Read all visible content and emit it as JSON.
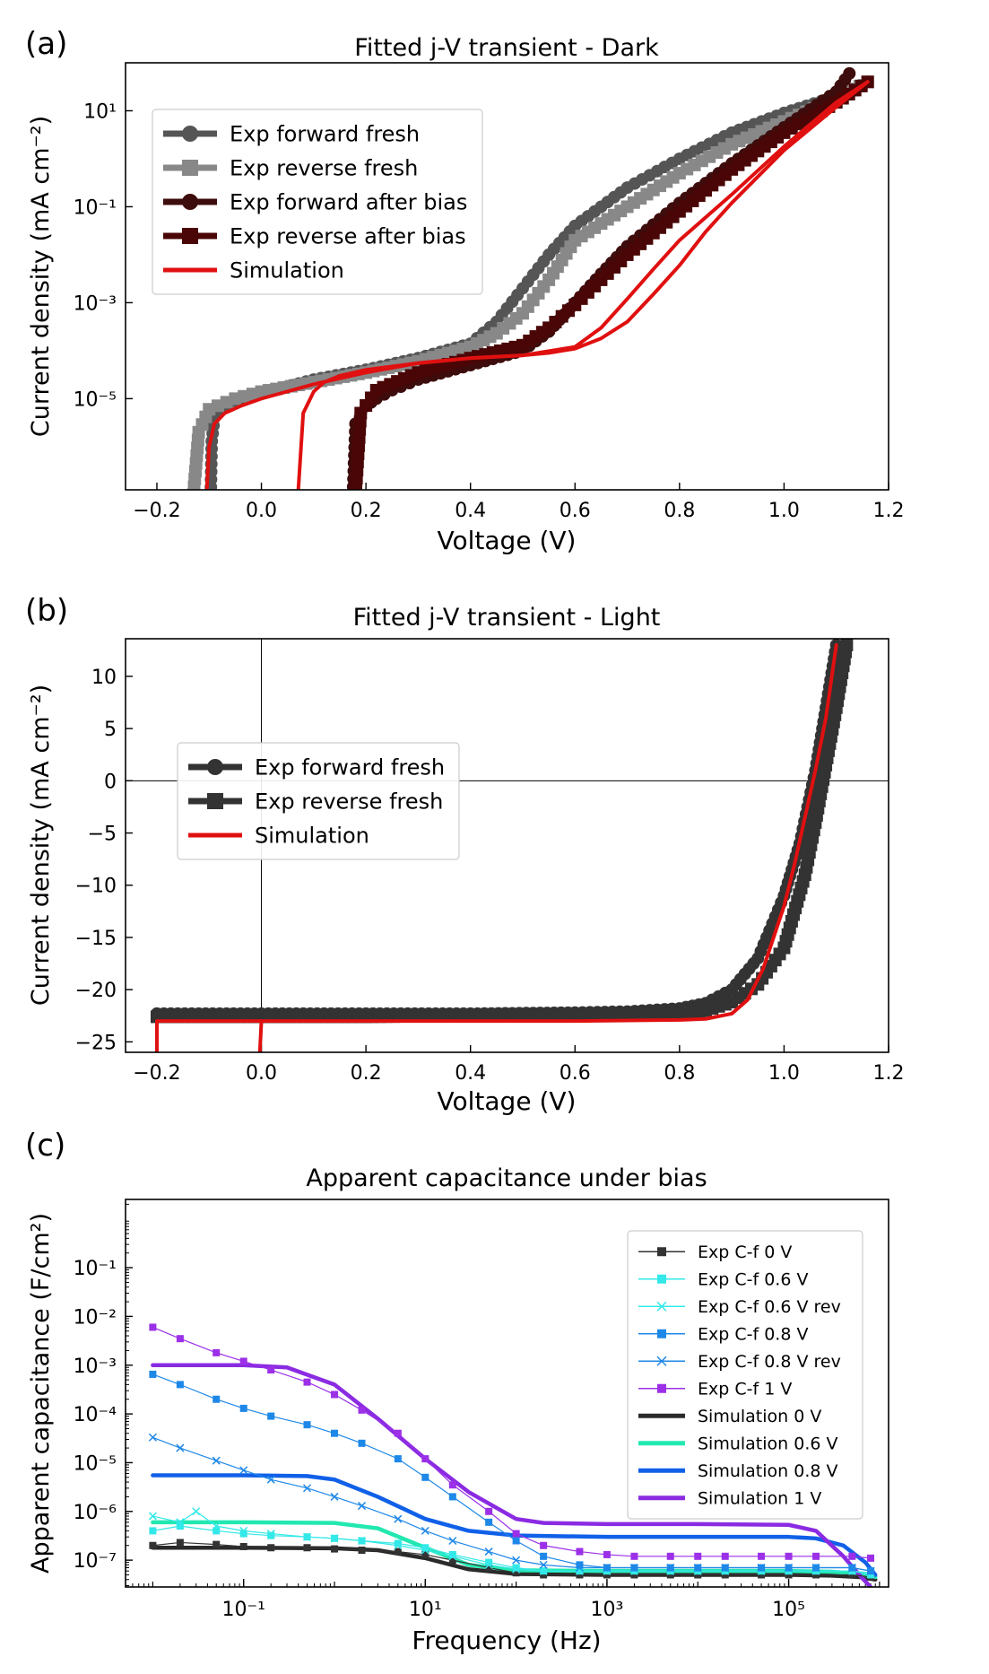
{
  "chart_data": [
    {
      "panel_label": "(a)",
      "type": "line",
      "title": "Fitted j-V transient - Dark",
      "xlabel": "Voltage (V)",
      "ylabel": "Current density (mA cm⁻²)",
      "xlim": [
        -0.26,
        1.2
      ],
      "ylim_log10": [
        -6.9,
        2.0
      ],
      "y_scale": "log",
      "x_ticks": [
        -0.2,
        0.0,
        0.2,
        0.4,
        0.6,
        0.8,
        1.0,
        1.2
      ],
      "x_tick_labels": [
        "−0.2",
        "0.0",
        "0.2",
        "0.4",
        "0.6",
        "0.8",
        "1.0",
        "1.2"
      ],
      "y_tick_exponents": [
        1,
        -1,
        -3,
        -5
      ],
      "legend_position": "upper-left",
      "series": [
        {
          "name": "Exp forward fresh",
          "color": "#555555",
          "marker": "circle",
          "x": [
            -0.097,
            -0.095,
            -0.09,
            -0.08,
            -0.05,
            0.0,
            0.1,
            0.2,
            0.3,
            0.4,
            0.45,
            0.5,
            0.55,
            0.6,
            0.7,
            0.8,
            0.9,
            1.0,
            1.1,
            1.16
          ],
          "y": [
            1e-07,
            1.3e-06,
            4e-06,
            6e-06,
            9e-06,
            1.3e-05,
            2.5e-05,
            4e-05,
            7e-05,
            0.00014,
            0.0004,
            0.002,
            0.01,
            0.04,
            0.25,
            1.0,
            3.5,
            9.0,
            20.0,
            40.0
          ]
        },
        {
          "name": "Exp reverse fresh",
          "color": "#888888",
          "marker": "square",
          "x": [
            1.16,
            1.1,
            1.0,
            0.9,
            0.8,
            0.7,
            0.6,
            0.55,
            0.5,
            0.45,
            0.4,
            0.3,
            0.2,
            0.1,
            0.0,
            -0.05,
            -0.1,
            -0.12,
            -0.13
          ],
          "y": [
            40.0,
            18.0,
            6.0,
            2.0,
            0.5,
            0.1,
            0.02,
            0.003,
            0.0006,
            0.00023,
            0.00012,
            6e-05,
            3.5e-05,
            2.2e-05,
            1.4e-05,
            1e-05,
            6e-06,
            2e-06,
            1e-07
          ]
        },
        {
          "name": "Exp forward after bias",
          "color": "#3d0c0c",
          "marker": "circle",
          "x": [
            0.175,
            0.18,
            0.19,
            0.2,
            0.22,
            0.25,
            0.3,
            0.4,
            0.5,
            0.55,
            0.6,
            0.65,
            0.7,
            0.8,
            0.9,
            1.0,
            1.1,
            1.125
          ],
          "y": [
            1e-07,
            3e-06,
            5e-06,
            7e-06,
            1e-05,
            1.5e-05,
            2.5e-05,
            5e-05,
            0.0001,
            0.00025,
            0.001,
            0.004,
            0.015,
            0.12,
            0.8,
            4.5,
            25.0,
            60.0
          ]
        },
        {
          "name": "Exp reverse after bias",
          "color": "#4a0606",
          "marker": "square",
          "x": [
            1.16,
            1.1,
            1.0,
            0.9,
            0.8,
            0.7,
            0.65,
            0.6,
            0.55,
            0.5,
            0.4,
            0.3,
            0.22,
            0.19,
            0.18
          ],
          "y": [
            40.0,
            15.0,
            3.5,
            0.6,
            0.08,
            0.01,
            0.003,
            0.0009,
            0.0003,
            0.00013,
            7e-05,
            3.5e-05,
            1.5e-05,
            5e-06,
            1e-07
          ]
        },
        {
          "name": "Simulation",
          "color": "#e01010",
          "marker": "none",
          "x": [
            -0.105,
            -0.1,
            -0.09,
            -0.07,
            -0.04,
            0.0,
            0.1,
            0.2,
            0.3,
            0.4,
            0.5,
            0.55,
            0.6,
            0.65,
            0.7,
            0.75,
            0.8,
            0.85,
            0.9,
            1.0,
            1.1,
            1.16
          ],
          "y": [
            1e-07,
            1e-06,
            3e-06,
            5e-06,
            7e-06,
            1e-05,
            2e-05,
            3.5e-05,
            5.5e-05,
            7e-05,
            8e-05,
            9e-05,
            0.00011,
            0.00018,
            0.0004,
            0.0015,
            0.006,
            0.03,
            0.12,
            1.5,
            12.0,
            40.0
          ]
        },
        {
          "name": "Simulation",
          "color": "#e01010",
          "marker": "none",
          "legend": false,
          "x": [
            1.16,
            1.1,
            1.0,
            0.9,
            0.8,
            0.75,
            0.7,
            0.65,
            0.6,
            0.5,
            0.4,
            0.3,
            0.2,
            0.15,
            0.12,
            0.1,
            0.08,
            0.07
          ],
          "y": [
            40.0,
            15.0,
            1.8,
            0.18,
            0.02,
            0.005,
            0.0012,
            0.0003,
            0.00012,
            8e-05,
            7e-05,
            5.5e-05,
            4e-05,
            3e-05,
            2.2e-05,
            1.4e-05,
            5e-06,
            1e-07
          ]
        }
      ]
    },
    {
      "panel_label": "(b)",
      "type": "line",
      "title": "Fitted j-V transient - Light",
      "xlabel": "Voltage (V)",
      "ylabel": "Current density (mA cm⁻²)",
      "xlim": [
        -0.26,
        1.2
      ],
      "ylim": [
        -26,
        13.6
      ],
      "x_ticks": [
        -0.2,
        0.0,
        0.2,
        0.4,
        0.6,
        0.8,
        1.0,
        1.2
      ],
      "x_tick_labels": [
        "−0.2",
        "0.0",
        "0.2",
        "0.4",
        "0.6",
        "0.8",
        "1.0",
        "1.2"
      ],
      "y_ticks": [
        10,
        5,
        0,
        -5,
        -10,
        -15,
        -20,
        -25
      ],
      "y_tick_labels": [
        "10",
        "5",
        "0",
        "−5",
        "−10",
        "−15",
        "−20",
        "−25"
      ],
      "legend_position": "center-left",
      "series": [
        {
          "name": "Exp forward fresh",
          "color": "#333333",
          "marker": "circle",
          "x": [
            -0.2,
            0.0,
            0.2,
            0.4,
            0.6,
            0.7,
            0.8,
            0.85,
            0.9,
            0.95,
            1.0,
            1.03,
            1.06,
            1.08,
            1.1
          ],
          "y": [
            -22.3,
            -22.3,
            -22.3,
            -22.3,
            -22.2,
            -22.1,
            -21.8,
            -21.3,
            -20.0,
            -17.0,
            -11.0,
            -6.0,
            1.0,
            7.0,
            13.0
          ]
        },
        {
          "name": "Exp reverse fresh",
          "color": "#333333",
          "marker": "square",
          "x": [
            1.12,
            1.1,
            1.08,
            1.06,
            1.04,
            1.0,
            0.95,
            0.9,
            0.85,
            0.8,
            0.7,
            0.6,
            0.4,
            0.2,
            0.0,
            -0.2
          ],
          "y": [
            13.0,
            7.0,
            1.5,
            -4.0,
            -9.0,
            -16.0,
            -19.5,
            -21.2,
            -22.0,
            -22.3,
            -22.4,
            -22.5,
            -22.5,
            -22.6,
            -22.6,
            -22.6
          ]
        },
        {
          "name": "Simulation",
          "color": "#e01010",
          "marker": "none",
          "x": [
            -0.2,
            -0.2,
            0.0,
            0.2,
            0.4,
            0.6,
            0.8,
            0.85,
            0.9,
            0.93,
            0.96,
            1.0,
            1.02,
            1.04,
            1.06,
            1.08,
            1.1
          ],
          "y": [
            -26.0,
            -23.0,
            -23.0,
            -23.0,
            -23.0,
            -23.0,
            -22.9,
            -22.8,
            -22.3,
            -21.0,
            -18.0,
            -12.0,
            -8.0,
            -3.5,
            1.0,
            6.0,
            13.0
          ]
        },
        {
          "name": "Simulation",
          "color": "#e01010",
          "marker": "none",
          "legend": false,
          "x": [
            -0.003,
            0.0
          ],
          "y": [
            -26.0,
            -23.0
          ]
        }
      ]
    },
    {
      "panel_label": "(c)",
      "type": "line",
      "title": "Apparent capacitance under bias",
      "xlabel": "Frequency (Hz)",
      "ylabel": "Apparent capacitance (F/cm²)",
      "x_scale": "log",
      "y_scale": "log",
      "xlim_log10": [
        -2.3,
        6.1
      ],
      "ylim_log10": [
        -7.55,
        0.4
      ],
      "x_tick_exponents": [
        -1,
        1,
        3,
        5
      ],
      "y_tick_exponents": [
        -1,
        -2,
        -3,
        -4,
        -5,
        -6,
        -7
      ],
      "legend_position": "upper-right",
      "series": [
        {
          "name": "Exp C-f 0 V",
          "color": "#333333",
          "marker": "square",
          "kind": "exp",
          "x": [
            0.01,
            0.02,
            0.05,
            0.1,
            0.2,
            0.5,
            1,
            2,
            5,
            10,
            20,
            50,
            100,
            200,
            500,
            1000,
            2000,
            5000,
            10000,
            20000,
            50000,
            100000,
            200000,
            500000,
            800000
          ],
          "y": [
            2e-07,
            2.3e-07,
            2.1e-07,
            1.9e-07,
            1.8e-07,
            1.8e-07,
            1.7e-07,
            1.6e-07,
            1.5e-07,
            1.3e-07,
            1e-07,
            7e-08,
            5.5e-08,
            5e-08,
            5e-08,
            5e-08,
            5e-08,
            5e-08,
            5e-08,
            5e-08,
            5e-08,
            5e-08,
            5e-08,
            5e-08,
            4.5e-08
          ]
        },
        {
          "name": "Exp C-f 0.6 V",
          "color": "#33e8e8",
          "marker": "square",
          "kind": "exp",
          "x": [
            0.01,
            0.02,
            0.05,
            0.1,
            0.2,
            0.5,
            1,
            2,
            5,
            10,
            20,
            50,
            100,
            200,
            500,
            1000,
            2000,
            5000,
            10000,
            20000,
            50000,
            100000,
            200000,
            500000,
            800000
          ],
          "y": [
            4e-07,
            5e-07,
            4e-07,
            3.5e-07,
            3.2e-07,
            3e-07,
            2.8e-07,
            2.5e-07,
            2.2e-07,
            1.8e-07,
            1.3e-07,
            9e-08,
            7e-08,
            6e-08,
            6e-08,
            6e-08,
            6e-08,
            6e-08,
            6e-08,
            6e-08,
            6e-08,
            6e-08,
            6e-08,
            6e-08,
            5e-08
          ]
        },
        {
          "name": "Exp C-f 0.6 V rev",
          "color": "#33e8e8",
          "marker": "x",
          "kind": "exp",
          "x": [
            0.01,
            0.02,
            0.03,
            0.05,
            0.1,
            0.2,
            0.5,
            1,
            2,
            5,
            10,
            20,
            50,
            100,
            200,
            500,
            1000,
            2000,
            5000,
            10000,
            20000,
            50000,
            100000,
            200000,
            500000,
            800000
          ],
          "y": [
            8e-07,
            6e-07,
            1e-06,
            5e-07,
            4e-07,
            3.5e-07,
            3e-07,
            2.8e-07,
            2.5e-07,
            2e-07,
            1.6e-07,
            1.2e-07,
            8e-08,
            6.5e-08,
            6e-08,
            6e-08,
            6e-08,
            6e-08,
            6e-08,
            6e-08,
            6e-08,
            6e-08,
            6e-08,
            6e-08,
            6e-08,
            5.5e-08
          ]
        },
        {
          "name": "Exp C-f 0.8 V",
          "color": "#1e88e8",
          "marker": "square",
          "kind": "exp",
          "x": [
            0.01,
            0.02,
            0.05,
            0.1,
            0.2,
            0.5,
            1,
            2,
            5,
            10,
            20,
            50,
            100,
            200,
            500,
            1000,
            2000,
            5000,
            10000,
            20000,
            50000,
            100000,
            200000,
            500000,
            800000
          ],
          "y": [
            0.00065,
            0.0004,
            0.0002,
            0.00013,
            9e-05,
            6e-05,
            4e-05,
            2.5e-05,
            1.2e-05,
            5e-06,
            2e-06,
            6e-07,
            2.5e-07,
            1.2e-07,
            8e-08,
            7e-08,
            7e-08,
            7e-08,
            7e-08,
            7e-08,
            7e-08,
            7e-08,
            7e-08,
            7e-08,
            6e-08
          ]
        },
        {
          "name": "Exp C-f 0.8 V rev",
          "color": "#1e88e8",
          "marker": "x",
          "kind": "exp",
          "x": [
            0.01,
            0.02,
            0.05,
            0.1,
            0.2,
            0.5,
            1,
            2,
            5,
            10,
            20,
            50,
            100,
            200,
            500,
            1000,
            2000,
            5000,
            10000,
            20000,
            50000,
            100000,
            200000,
            500000,
            800000
          ],
          "y": [
            3.3e-05,
            2e-05,
            1.1e-05,
            7e-06,
            4.5e-06,
            3e-06,
            2e-06,
            1.3e-06,
            7e-07,
            4e-07,
            2.5e-07,
            1.5e-07,
            1e-07,
            8e-08,
            7e-08,
            7e-08,
            7e-08,
            7e-08,
            7e-08,
            7e-08,
            7e-08,
            7e-08,
            7e-08,
            7e-08,
            6e-08
          ]
        },
        {
          "name": "Exp C-f 1 V",
          "color": "#9b30e8",
          "marker": "square",
          "kind": "exp",
          "x": [
            0.01,
            0.02,
            0.05,
            0.1,
            0.2,
            0.5,
            1,
            2,
            5,
            10,
            20,
            50,
            100,
            200,
            500,
            1000,
            2000,
            5000,
            10000,
            20000,
            50000,
            100000,
            200000,
            500000,
            800000
          ],
          "y": [
            0.006,
            0.0035,
            0.0018,
            0.0012,
            0.0008,
            0.00045,
            0.00025,
            0.00012,
            4e-05,
            1.2e-05,
            3.5e-06,
            1e-06,
            3.5e-07,
            2e-07,
            1.5e-07,
            1.3e-07,
            1.2e-07,
            1.2e-07,
            1.2e-07,
            1.2e-07,
            1.2e-07,
            1.2e-07,
            1.2e-07,
            1.2e-07,
            1.1e-07
          ]
        },
        {
          "name": "Simulation 0 V",
          "color": "#2a2a2a",
          "marker": "none",
          "kind": "sim",
          "x": [
            0.01,
            0.1,
            1,
            3,
            10,
            30,
            100,
            1000,
            10000,
            100000,
            300000,
            600000,
            900000
          ],
          "y": [
            1.8e-07,
            1.8e-07,
            1.75e-07,
            1.6e-07,
            1.1e-07,
            6.5e-08,
            5.2e-08,
            5e-08,
            5e-08,
            5e-08,
            4.8e-08,
            4.5e-08,
            4e-08
          ]
        },
        {
          "name": "Simulation 0.6 V",
          "color": "#22e8b0",
          "marker": "none",
          "kind": "sim",
          "x": [
            0.01,
            0.1,
            1,
            3,
            10,
            30,
            100,
            1000,
            10000,
            100000,
            300000,
            600000,
            900000
          ],
          "y": [
            6e-07,
            6e-07,
            5.8e-07,
            4.5e-07,
            1.8e-07,
            8e-08,
            6.2e-08,
            6e-08,
            6e-08,
            6e-08,
            5.8e-08,
            5.2e-08,
            4.5e-08
          ]
        },
        {
          "name": "Simulation 0.8 V",
          "color": "#1060e8",
          "marker": "none",
          "kind": "sim",
          "x": [
            0.01,
            0.1,
            0.5,
            1,
            3,
            10,
            30,
            100,
            1000,
            10000,
            100000,
            200000,
            400000,
            700000,
            900000
          ],
          "y": [
            5.5e-06,
            5.5e-06,
            5.3e-06,
            4.5e-06,
            2e-06,
            7e-07,
            4e-07,
            3.2e-07,
            3e-07,
            3e-07,
            3e-07,
            2.8e-07,
            2e-07,
            9e-08,
            5e-08
          ]
        },
        {
          "name": "Simulation 1 V",
          "color": "#8a2be2",
          "marker": "none",
          "kind": "sim",
          "x": [
            0.01,
            0.1,
            0.3,
            1,
            3,
            10,
            30,
            100,
            200,
            1000,
            10000,
            100000,
            200000,
            400000,
            600000,
            800000
          ],
          "y": [
            0.001,
            0.001,
            0.0009,
            0.0004,
            8e-05,
            1.2e-05,
            2.5e-06,
            7e-07,
            5.8e-07,
            5.5e-07,
            5.5e-07,
            5.3e-07,
            4e-07,
            1.2e-07,
            5e-08,
            2.8e-08
          ]
        }
      ]
    }
  ]
}
